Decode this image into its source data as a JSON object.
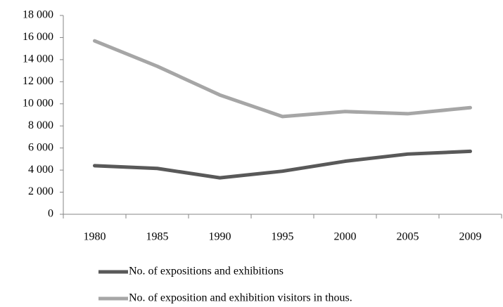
{
  "chart_data": {
    "type": "line",
    "categories": [
      "1980",
      "1985",
      "1990",
      "1995",
      "2000",
      "2005",
      "2009"
    ],
    "series": [
      {
        "name": "No. of expositions and exhibitions",
        "color": "#595959",
        "values": [
          4400,
          4150,
          3300,
          3900,
          4800,
          5450,
          5700
        ]
      },
      {
        "name": "No. of exposition and exhibition visitors in thous.",
        "color": "#a6a6a6",
        "values": [
          15700,
          13400,
          10800,
          8850,
          9300,
          9100,
          9650
        ]
      }
    ],
    "ylim": [
      0,
      18000
    ],
    "yticks": [
      0,
      {
        "value": 2000,
        "label": "2 000"
      },
      {
        "value": 4000,
        "label": "4 000"
      },
      {
        "value": 6000,
        "label": "6 000"
      },
      {
        "value": 8000,
        "label": "8 000"
      },
      {
        "value": 10000,
        "label": "10 000"
      },
      {
        "value": 12000,
        "label": "12 000"
      },
      {
        "value": 14000,
        "label": "14 000"
      },
      {
        "value": 16000,
        "label": "16 000"
      },
      {
        "value": 18000,
        "label": "18 000"
      }
    ],
    "grid": false,
    "legend": "bottom"
  }
}
